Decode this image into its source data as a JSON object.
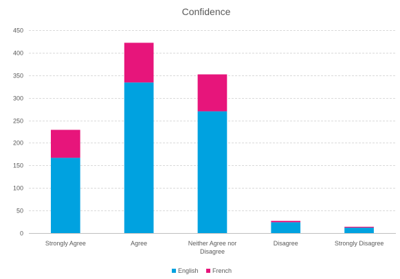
{
  "chart_data": {
    "type": "bar",
    "stacked": true,
    "title": "Confidence",
    "xlabel": "",
    "ylabel": "",
    "ylim": [
      0,
      450
    ],
    "yticks": [
      0,
      50,
      100,
      150,
      200,
      250,
      300,
      350,
      400,
      450
    ],
    "grid": true,
    "legend_position": "bottom",
    "categories": [
      "Strongly Agree",
      "Agree",
      "Neither Agree nor Disagree",
      "Disagree",
      "Strongly Disagree"
    ],
    "series": [
      {
        "name": "English",
        "color": "#00a2e0",
        "values": [
          167,
          334,
          270,
          24,
          12
        ]
      },
      {
        "name": "French",
        "color": "#e7157b",
        "values": [
          62,
          88,
          82,
          3,
          2
        ]
      }
    ]
  }
}
